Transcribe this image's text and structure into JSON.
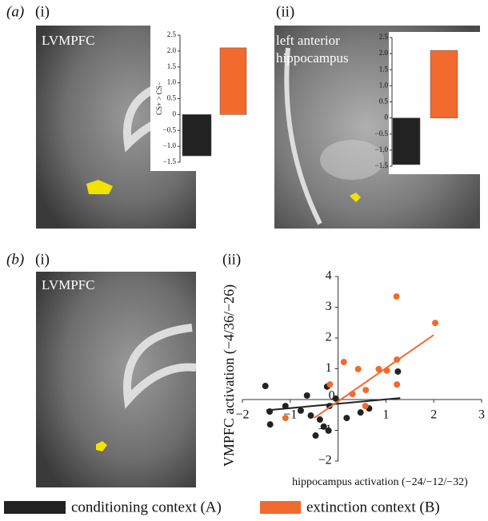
{
  "panels": {
    "a": {
      "letter": "(a)",
      "i": {
        "label": "(i)",
        "region": "LVMPFC"
      },
      "ii": {
        "label": "(ii)",
        "region": "left anterior hippocampus"
      }
    },
    "b": {
      "letter": "(b)",
      "i": {
        "label": "(i)",
        "region": "LVMPFC"
      },
      "ii": {
        "label": "(ii)"
      }
    }
  },
  "chart_data": [
    {
      "type": "bar",
      "y_label": "CS+ > CS−",
      "categories": [
        null,
        null
      ],
      "values": [
        -1.3,
        2.1
      ],
      "colors": [
        "#222222",
        "#f26a2e"
      ],
      "ylim": [
        -1.5,
        2.5
      ],
      "yticks": [
        {
          "value": -1.5,
          "label": "−1.5"
        },
        {
          "value": -1,
          "label": "−1.0"
        },
        {
          "value": -0.5,
          "label": "−0.5"
        },
        0,
        {
          "value": 0.5,
          "label": "0.5"
        },
        {
          "value": 1,
          "label": "1.0"
        },
        {
          "value": 1.5,
          "label": "1.5"
        },
        {
          "value": 2,
          "label": "2.0"
        },
        {
          "value": 2.5,
          "label": "2.5"
        }
      ]
    },
    {
      "type": "bar",
      "categories": [
        null,
        null
      ],
      "values": [
        -1.45,
        2.1
      ],
      "colors": [
        "#222222",
        "#f26a2e"
      ],
      "ylim": [
        -1.5,
        2.5
      ],
      "yticks": [
        {
          "value": -1.5,
          "label": "−1.5"
        },
        {
          "value": -1,
          "label": "−1.0"
        },
        {
          "value": -0.5,
          "label": "−0.5"
        },
        0,
        {
          "value": 0.5,
          "label": "0.5"
        },
        {
          "value": 1,
          "label": "1.0"
        },
        {
          "value": 1.5,
          "label": "1.5"
        },
        {
          "value": 2,
          "label": "2.0"
        },
        {
          "value": 2.5,
          "label": "2.5"
        }
      ]
    },
    {
      "type": "scatter",
      "x_label": "hippocampus activation (−24/−12/−32)",
      "y_label": "VMPFC activation (−4/36/−26)",
      "xlim": [
        -2,
        3
      ],
      "ylim": [
        -2,
        4
      ],
      "xticks": [
        {
          "value": -2,
          "label": "−2"
        },
        {
          "value": -1,
          "label": "−1"
        },
        0,
        1,
        2,
        3
      ],
      "yticks": [
        {
          "value": -2,
          "label": "−2"
        },
        {
          "value": -1,
          "label": "−1"
        },
        1,
        2,
        3,
        4
      ],
      "series": [
        {
          "name": "conditioning context (A)",
          "color": "#222222",
          "x": [
            -1.52,
            -1.43,
            -1.42,
            -1.1,
            -0.78,
            -0.65,
            -0.57,
            -0.38,
            -0.3,
            -0.2,
            -0.18,
            -0.47,
            -0.23,
            -0.05,
            0.18,
            0.47,
            0.65,
            1.25
          ],
          "values": [
            0.44,
            -0.39,
            -0.81,
            -0.21,
            -0.36,
            0.13,
            -0.52,
            -0.65,
            -0.88,
            -1.01,
            -0.21,
            -1.17,
            0.42,
            0.03,
            -0.6,
            -0.42,
            -0.29,
            0.91
          ],
          "fit_x": [
            -1.5,
            1.3
          ],
          "fit_y": [
            -0.35,
            0.05
          ]
        },
        {
          "name": "extinction context (B)",
          "color": "#f26a2e",
          "x": [
            -1.1,
            -0.17,
            0.12,
            0.3,
            0.42,
            0.58,
            0.85,
            1.02,
            1.23,
            1.23,
            1.22,
            2.03,
            0.57
          ],
          "values": [
            -0.6,
            0.49,
            1.22,
            0.18,
            0.99,
            0.31,
            0.99,
            0.94,
            1.3,
            0.49,
            3.35,
            2.49,
            -0.21
          ],
          "fit_x": [
            -0.5,
            2.0
          ],
          "fit_y": [
            -0.6,
            2.1
          ]
        }
      ]
    }
  ]
}
